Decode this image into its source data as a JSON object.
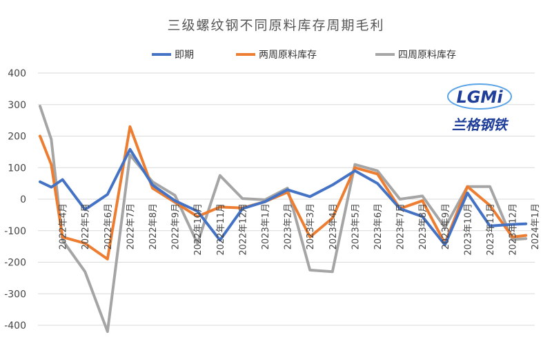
{
  "chart_data": {
    "type": "line",
    "title": "三级螺纹钢不同原料库存周期毛利",
    "categories": [
      "2022年4月",
      "2022年5月",
      "2022年6月",
      "2022年7月",
      "2022年8月",
      "2022年9月",
      "2022年10月",
      "2022年11月",
      "2022年12月",
      "2023年1月",
      "2023年2月",
      "2023年3月",
      "2023年4月",
      "2023年5月",
      "2023年6月",
      "2023年7月",
      "2023年8月",
      "2023年9月",
      "2023年10月",
      "2023年11月",
      "2023年12月",
      "2024年1月"
    ],
    "x": [
      0,
      0.5,
      1,
      2,
      3,
      4,
      5,
      6,
      7,
      8,
      9,
      10,
      11,
      12,
      13,
      14,
      15,
      16,
      17,
      18,
      19,
      20,
      21,
      21.6
    ],
    "series": [
      {
        "name": "即期",
        "color": "#4472C4",
        "values": [
          55,
          38,
          62,
          -33,
          15,
          158,
          45,
          -5,
          -38,
          -130,
          -30,
          -8,
          30,
          8,
          45,
          90,
          50,
          -30,
          -55,
          -145,
          20,
          -85,
          -80,
          -78
        ]
      },
      {
        "name": "两周原料库存",
        "color": "#ED7D31",
        "values": [
          200,
          110,
          -120,
          -140,
          -190,
          230,
          35,
          -10,
          -55,
          -25,
          -28,
          -8,
          22,
          -120,
          -60,
          100,
          80,
          -30,
          -5,
          -140,
          40,
          -20,
          -120,
          -115
        ]
      },
      {
        "name": "四周原料库存",
        "color": "#A5A5A5",
        "values": [
          295,
          190,
          -130,
          -230,
          -420,
          140,
          55,
          12,
          -140,
          75,
          2,
          -2,
          35,
          -225,
          -230,
          110,
          90,
          0,
          10,
          -90,
          40,
          40,
          -128,
          -125
        ]
      }
    ],
    "ylim": [
      -400,
      400
    ],
    "yticks": [
      400,
      300,
      200,
      100,
      0,
      -100,
      -200,
      -300,
      -400
    ],
    "ytick_labels": [
      "400",
      "300",
      "200",
      "100",
      "0",
      "-100",
      "-200",
      "-300",
      "-400"
    ],
    "legend_position": "top",
    "grid": "horizontal",
    "xlabel": "",
    "ylabel": ""
  },
  "logo": {
    "mark": "LGMi",
    "caption": "兰格钢铁",
    "colors": {
      "primary": "#1F3E9A",
      "accent": "#5BA4E6"
    }
  }
}
